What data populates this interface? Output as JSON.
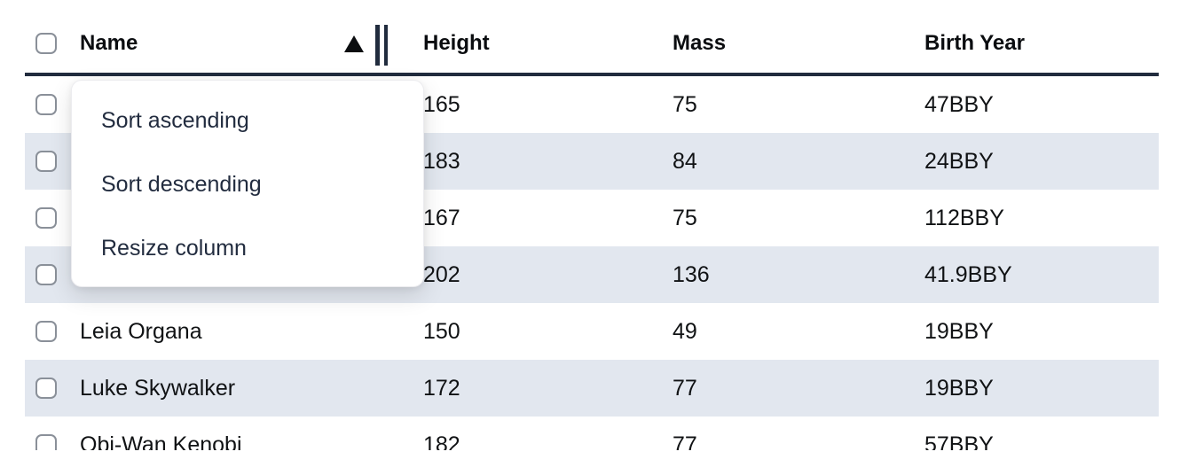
{
  "table": {
    "columns": [
      {
        "id": "name",
        "label": "Name",
        "sorted": "ascending"
      },
      {
        "id": "height",
        "label": "Height"
      },
      {
        "id": "mass",
        "label": "Mass"
      },
      {
        "id": "birth_year",
        "label": "Birth Year"
      }
    ],
    "sort_indicator": "ascending-triangle",
    "rows": [
      {
        "name": "",
        "height": "165",
        "mass": "75",
        "birth_year": "47BBY"
      },
      {
        "name": "",
        "height": "183",
        "mass": "84",
        "birth_year": "24BBY"
      },
      {
        "name": "",
        "height": "167",
        "mass": "75",
        "birth_year": "112BBY"
      },
      {
        "name": "",
        "height": "202",
        "mass": "136",
        "birth_year": "41.9BBY"
      },
      {
        "name": "Leia Organa",
        "height": "150",
        "mass": "49",
        "birth_year": "19BBY"
      },
      {
        "name": "Luke Skywalker",
        "height": "172",
        "mass": "77",
        "birth_year": "19BBY"
      },
      {
        "name": "Obi-Wan Kenobi",
        "height": "182",
        "mass": "77",
        "birth_year": "57BBY"
      }
    ]
  },
  "context_menu": {
    "items": [
      {
        "label": "Sort ascending"
      },
      {
        "label": "Sort descending"
      },
      {
        "label": "Resize column"
      }
    ]
  },
  "colors": {
    "row_stripe": "#e2e7ef",
    "header_border": "#212c3e",
    "text": "#101214",
    "menu_text": "#222c3f",
    "checkbox_border": "#8a9099"
  }
}
